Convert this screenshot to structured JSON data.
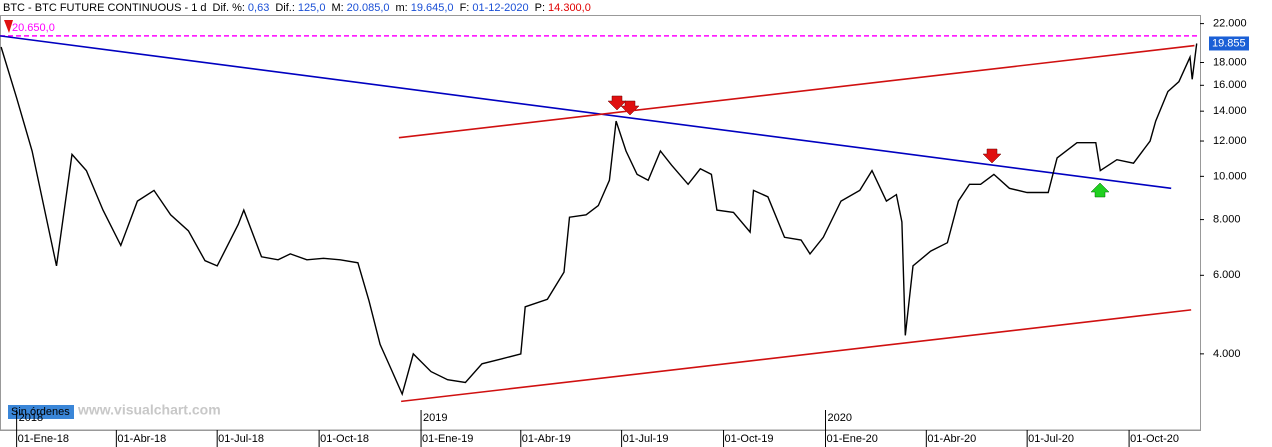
{
  "chart_data": {
    "type": "line",
    "header": [
      {
        "label": "BTC - BTC FUTURE CONTINUOUS - 1 d"
      },
      {
        "label": "Dif. %:",
        "value": "0,63",
        "color": "#1a4fd6"
      },
      {
        "label": "Dif.:",
        "value": "125,0",
        "color": "#1a4fd6"
      },
      {
        "label": "M:",
        "value": "20.085,0",
        "color": "#1a4fd6"
      },
      {
        "label": "m:",
        "value": "19.645,0",
        "color": "#1a4fd6"
      },
      {
        "label": "F:",
        "value": "01-12-2020",
        "color": "#1a4fd6"
      },
      {
        "label": "P:",
        "value": "14.300,0",
        "color": "#e00000"
      }
    ],
    "x": [
      "2017-12-18",
      "2018-01-01",
      "2018-01-15",
      "2018-02-01",
      "2018-02-06",
      "2018-02-20",
      "2018-03-05",
      "2018-03-20",
      "2018-04-05",
      "2018-04-20",
      "2018-05-05",
      "2018-05-20",
      "2018-06-05",
      "2018-06-20",
      "2018-07-01",
      "2018-07-20",
      "2018-07-25",
      "2018-08-10",
      "2018-08-25",
      "2018-09-05",
      "2018-09-20",
      "2018-10-05",
      "2018-10-20",
      "2018-11-05",
      "2018-11-15",
      "2018-11-25",
      "2018-12-05",
      "2018-12-15",
      "2018-12-25",
      "2019-01-10",
      "2019-01-25",
      "2019-02-10",
      "2019-02-25",
      "2019-03-15",
      "2019-04-01",
      "2019-04-05",
      "2019-04-25",
      "2019-05-10",
      "2019-05-15",
      "2019-05-30",
      "2019-06-10",
      "2019-06-20",
      "2019-06-26",
      "2019-07-05",
      "2019-07-15",
      "2019-07-25",
      "2019-08-05",
      "2019-08-15",
      "2019-08-30",
      "2019-09-10",
      "2019-09-20",
      "2019-09-25",
      "2019-10-10",
      "2019-10-25",
      "2019-10-28",
      "2019-11-10",
      "2019-11-25",
      "2019-12-10",
      "2019-12-18",
      "2019-12-30",
      "2020-01-15",
      "2020-02-01",
      "2020-02-12",
      "2020-02-25",
      "2020-03-05",
      "2020-03-10",
      "2020-03-13",
      "2020-03-20",
      "2020-04-05",
      "2020-04-20",
      "2020-04-30",
      "2020-05-10",
      "2020-05-20",
      "2020-06-01",
      "2020-06-15",
      "2020-07-01",
      "2020-07-20",
      "2020-07-28",
      "2020-08-15",
      "2020-09-01",
      "2020-09-05",
      "2020-09-20",
      "2020-10-05",
      "2020-10-20",
      "2020-10-25",
      "2020-11-05",
      "2020-11-15",
      "2020-11-25",
      "2020-11-27",
      "2020-12-01"
    ],
    "values": [
      19500,
      15000,
      11400,
      7200,
      6300,
      11200,
      10300,
      8400,
      7000,
      8800,
      9300,
      8200,
      7550,
      6470,
      6300,
      7800,
      8400,
      6600,
      6500,
      6700,
      6500,
      6550,
      6500,
      6400,
      5260,
      4200,
      3700,
      3250,
      4000,
      3650,
      3500,
      3450,
      3800,
      3900,
      4000,
      5100,
      5300,
      6100,
      8100,
      8200,
      8600,
      9800,
      13300,
      11400,
      10100,
      9800,
      11400,
      10600,
      9600,
      10400,
      10100,
      8400,
      8300,
      7500,
      9300,
      9000,
      7300,
      7200,
      6700,
      7300,
      8800,
      9300,
      10300,
      8800,
      9100,
      7900,
      4400,
      6300,
      6800,
      7100,
      8800,
      9600,
      9600,
      10100,
      9400,
      9200,
      9200,
      11000,
      11900,
      11900,
      10300,
      10900,
      10700,
      12000,
      13300,
      15500,
      16300,
      18500,
      16500,
      19855
    ],
    "color": "#000000",
    "log_scale": true,
    "xlim": [
      "2017-12-17",
      "2020-12-04"
    ],
    "ylim": [
      2700,
      23000
    ],
    "xticks": [
      {
        "value": "2018-01-01",
        "label": "01-Ene-18"
      },
      {
        "value": "2018-04-01",
        "label": "01-Abr-18"
      },
      {
        "value": "2018-07-01",
        "label": "01-Jul-18"
      },
      {
        "value": "2018-10-01",
        "label": "01-Oct-18"
      },
      {
        "value": "2019-01-01",
        "label": "01-Ene-19"
      },
      {
        "value": "2019-04-01",
        "label": "01-Abr-19"
      },
      {
        "value": "2019-07-01",
        "label": "01-Jul-19"
      },
      {
        "value": "2019-10-01",
        "label": "01-Oct-19"
      },
      {
        "value": "2020-01-01",
        "label": "01-Ene-20"
      },
      {
        "value": "2020-04-01",
        "label": "01-Abr-20"
      },
      {
        "value": "2020-07-01",
        "label": "01-Jul-20"
      },
      {
        "value": "2020-10-01",
        "label": "01-Oct-20"
      }
    ],
    "year_labels": [
      {
        "value": "2018-01-01",
        "label": "2018"
      },
      {
        "value": "2019-01-01",
        "label": "2019"
      },
      {
        "value": "2020-01-01",
        "label": "2020"
      }
    ],
    "yticks": [
      {
        "value": 22000,
        "label": "22.000"
      },
      {
        "value": 18000,
        "label": "18.000"
      },
      {
        "value": 16000,
        "label": "16.000"
      },
      {
        "value": 14000,
        "label": "14.000"
      },
      {
        "value": 12000,
        "label": "12.000"
      },
      {
        "value": 10000,
        "label": "10.000"
      },
      {
        "value": 8000,
        "label": "8.000"
      },
      {
        "value": 6000,
        "label": "6.000"
      },
      {
        "value": 4000,
        "label": "4.000"
      }
    ],
    "trendlines": [
      {
        "color": "#0000c0",
        "x": [
          "2017-12-17",
          "2020-11-08"
        ],
        "values": [
          20650,
          9400
        ]
      },
      {
        "color": "#d01010",
        "x": [
          "2018-12-12",
          "2020-11-29"
        ],
        "values": [
          12210,
          19640
        ]
      },
      {
        "color": "#d01010",
        "x": [
          "2018-12-14",
          "2020-11-26"
        ],
        "values": [
          3130,
          5020
        ]
      }
    ],
    "reference_line": {
      "value": 20650,
      "label": "20.650,0",
      "color": "#ff00ff"
    },
    "last_price": {
      "value": 19855,
      "label": "19.855",
      "color": "#1a5fd6"
    },
    "button": "Sin órdenes",
    "watermark": "www.visualchart.com"
  }
}
